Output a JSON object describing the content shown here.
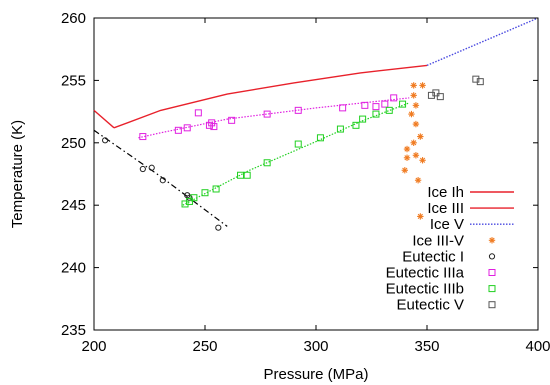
{
  "chart_data": {
    "type": "scatter",
    "xlabel": "Pressure (MPa)",
    "ylabel": "Temperature (K)",
    "xlim": [
      200,
      400
    ],
    "ylim": [
      235,
      260
    ],
    "x_ticks": [
      "200",
      "250",
      "300",
      "350",
      "400"
    ],
    "y_ticks": [
      "235",
      "240",
      "245",
      "250",
      "255",
      "260"
    ],
    "x_tick_values": [
      200,
      250,
      300,
      350,
      400
    ],
    "y_tick_values": [
      235,
      240,
      245,
      250,
      255,
      260
    ],
    "legend_position": "bottom-right",
    "grid": false,
    "series": [
      {
        "name": "Ice Ih",
        "kind": "line",
        "color": "#e8212b",
        "dash": "solid",
        "x": [
          200,
          209
        ],
        "y": [
          252.6,
          251.2
        ]
      },
      {
        "name": "Ice III",
        "kind": "line",
        "color": "#e8212b",
        "dash": "solid",
        "x": [
          209,
          230,
          260,
          290,
          320,
          350
        ],
        "y": [
          251.2,
          252.6,
          253.9,
          254.8,
          255.6,
          256.2
        ]
      },
      {
        "name": "Ice V",
        "kind": "line",
        "color": "#4a4ae0",
        "dash": "dotted",
        "x": [
          350,
          375,
          400
        ],
        "y": [
          256.2,
          258.1,
          260.0
        ]
      },
      {
        "name": "Ice III-V",
        "kind": "points",
        "marker": "asterisk",
        "color": "#f07b21",
        "x": [
          340,
          341,
          341,
          343,
          344,
          344,
          344,
          345,
          345,
          345,
          346,
          347,
          347,
          348,
          348
        ],
        "y": [
          247.8,
          248.8,
          249.5,
          252.3,
          253.8,
          254.6,
          250.0,
          249.0,
          253.0,
          251.5,
          247.0,
          250.5,
          244.1,
          248.6,
          254.6
        ]
      },
      {
        "name": "Eutectic I",
        "kind": "points",
        "marker": "circle",
        "color": "#222222",
        "x": [
          205,
          222,
          226,
          231,
          242,
          243,
          256
        ],
        "y": [
          250.2,
          247.9,
          248.0,
          247.0,
          245.8,
          245.6,
          243.2
        ]
      },
      {
        "name": "Eutectic IIIa",
        "kind": "points",
        "marker": "square",
        "color": "#e020e0",
        "x": [
          222,
          238,
          242,
          247,
          252,
          253,
          254,
          262,
          278,
          292,
          312,
          322,
          327,
          331,
          335
        ],
        "y": [
          250.5,
          251.0,
          251.2,
          252.4,
          251.4,
          251.6,
          251.3,
          251.8,
          252.3,
          252.6,
          252.8,
          253.0,
          252.9,
          253.1,
          253.6
        ]
      },
      {
        "name": "Eutectic IIIb",
        "kind": "points",
        "marker": "square",
        "color": "#20d020",
        "x": [
          241,
          243,
          245,
          250,
          255,
          266,
          269,
          278,
          292,
          302,
          311,
          318,
          321,
          327,
          333,
          339
        ],
        "y": [
          245.1,
          245.3,
          245.6,
          246.0,
          246.3,
          247.4,
          247.4,
          248.4,
          249.9,
          250.4,
          251.1,
          251.4,
          251.9,
          252.3,
          252.6,
          253.1
        ]
      },
      {
        "name": "Eutectic V",
        "kind": "points",
        "marker": "square",
        "color": "#555555",
        "x": [
          352,
          354,
          356,
          372,
          374
        ],
        "y": [
          253.8,
          254.0,
          253.7,
          255.1,
          254.9
        ]
      }
    ],
    "fit_lines": [
      {
        "color": "#e020e0",
        "dash": "dotted",
        "x": [
          220,
          230,
          260,
          300,
          342
        ],
        "y": [
          250.4,
          250.8,
          251.9,
          252.8,
          253.6
        ]
      },
      {
        "color": "#20d020",
        "dash": "dotted",
        "x": [
          240,
          270,
          300,
          320,
          342
        ],
        "y": [
          245.0,
          247.8,
          250.1,
          251.7,
          253.2
        ]
      },
      {
        "color": "#000000",
        "dash": "dashdot",
        "x": [
          200,
          230,
          260
        ],
        "y": [
          251.0,
          247.3,
          243.3
        ]
      }
    ]
  }
}
